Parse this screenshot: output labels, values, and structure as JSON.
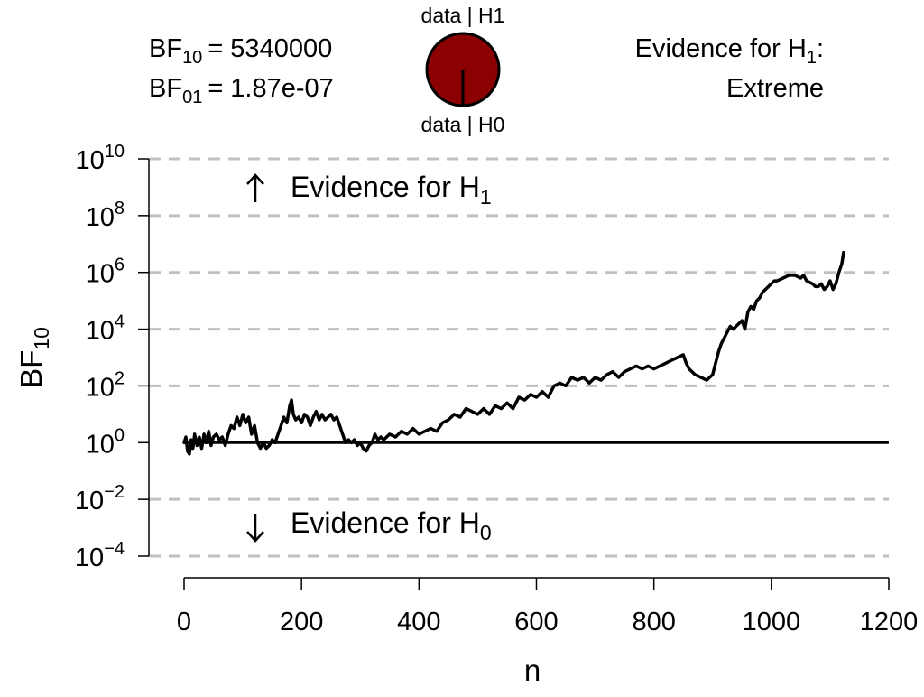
{
  "header": {
    "bf10_label": "BF",
    "bf10_sub": "10",
    "bf10_value": "= 5340000",
    "bf01_label": "BF",
    "bf01_sub": "01",
    "bf01_value": "= 1.87e-07",
    "pie_top_label": "data | H1",
    "pie_bottom_label": "data | H0",
    "evidence_line1_prefix": "Evidence for H",
    "evidence_line1_sub": "1",
    "evidence_line1_suffix": ":",
    "evidence_line2": "Extreme"
  },
  "annotations": {
    "h1_text": "Evidence for H",
    "h1_sub": "1",
    "h0_text": "Evidence for H",
    "h0_sub": "0",
    "up_arrow": "up-arrow-icon",
    "down_arrow": "down-arrow-icon"
  },
  "colors": {
    "pie_h1": "#8b0000",
    "pie_h0": "#ffffff",
    "line": "#000000",
    "gridline": "#c0c0c0"
  },
  "chart_data": {
    "type": "line",
    "title": "",
    "xlabel": "n",
    "ylabel_main": "BF",
    "ylabel_sub": "10",
    "y_scale": "log10",
    "xlim": [
      0,
      1200
    ],
    "ylim_exponent": [
      -4,
      10
    ],
    "x_ticks": [
      0,
      200,
      400,
      600,
      800,
      1000,
      1200
    ],
    "y_tick_base": "10",
    "y_tick_exponents": [
      -4,
      -2,
      0,
      2,
      4,
      6,
      8,
      10
    ],
    "dashed_grid_exponents": [
      -4,
      -2,
      2,
      4,
      6,
      8,
      10
    ],
    "reference_line_exponent": 0,
    "pie_h1_proportion": 1.0,
    "series": [
      {
        "log10_bf_points": [
          [
            0,
            0.0
          ],
          [
            3,
            0.2
          ],
          [
            6,
            -0.3
          ],
          [
            9,
            -0.4
          ],
          [
            12,
            0.1
          ],
          [
            15,
            -0.2
          ],
          [
            18,
            0.3
          ],
          [
            22,
            -0.1
          ],
          [
            26,
            0.2
          ],
          [
            30,
            -0.2
          ],
          [
            34,
            0.3
          ],
          [
            38,
            0.0
          ],
          [
            42,
            0.4
          ],
          [
            46,
            -0.1
          ],
          [
            50,
            0.2
          ],
          [
            55,
            0.3
          ],
          [
            60,
            0.1
          ],
          [
            65,
            0.2
          ],
          [
            70,
            -0.1
          ],
          [
            75,
            0.3
          ],
          [
            80,
            0.6
          ],
          [
            85,
            0.5
          ],
          [
            90,
            0.9
          ],
          [
            95,
            0.6
          ],
          [
            100,
            1.0
          ],
          [
            105,
            0.7
          ],
          [
            110,
            0.9
          ],
          [
            115,
            0.3
          ],
          [
            120,
            0.6
          ],
          [
            125,
            0.0
          ],
          [
            130,
            -0.2
          ],
          [
            135,
            0.0
          ],
          [
            140,
            -0.2
          ],
          [
            145,
            -0.1
          ],
          [
            150,
            0.1
          ],
          [
            155,
            0.0
          ],
          [
            160,
            0.3
          ],
          [
            165,
            0.6
          ],
          [
            170,
            0.9
          ],
          [
            175,
            0.7
          ],
          [
            180,
            1.3
          ],
          [
            183,
            1.5
          ],
          [
            186,
            1.0
          ],
          [
            190,
            0.8
          ],
          [
            195,
            0.9
          ],
          [
            200,
            0.7
          ],
          [
            205,
            1.0
          ],
          [
            210,
            0.9
          ],
          [
            215,
            0.6
          ],
          [
            220,
            0.9
          ],
          [
            225,
            1.1
          ],
          [
            230,
            0.8
          ],
          [
            235,
            1.0
          ],
          [
            240,
            0.8
          ],
          [
            245,
            0.9
          ],
          [
            250,
            1.0
          ],
          [
            255,
            0.8
          ],
          [
            260,
            0.9
          ],
          [
            265,
            0.6
          ],
          [
            270,
            0.3
          ],
          [
            275,
            0.0
          ],
          [
            280,
            0.1
          ],
          [
            285,
            0.0
          ],
          [
            290,
            0.1
          ],
          [
            295,
            -0.1
          ],
          [
            300,
            0.0
          ],
          [
            305,
            -0.2
          ],
          [
            310,
            -0.3
          ],
          [
            315,
            -0.1
          ],
          [
            320,
            0.0
          ],
          [
            325,
            0.3
          ],
          [
            330,
            0.1
          ],
          [
            335,
            0.2
          ],
          [
            340,
            0.1
          ],
          [
            345,
            0.2
          ],
          [
            350,
            0.3
          ],
          [
            360,
            0.2
          ],
          [
            370,
            0.4
          ],
          [
            380,
            0.3
          ],
          [
            390,
            0.5
          ],
          [
            400,
            0.3
          ],
          [
            410,
            0.4
          ],
          [
            420,
            0.5
          ],
          [
            430,
            0.4
          ],
          [
            440,
            0.7
          ],
          [
            450,
            0.8
          ],
          [
            460,
            1.0
          ],
          [
            470,
            0.9
          ],
          [
            480,
            1.2
          ],
          [
            490,
            1.1
          ],
          [
            500,
            1.0
          ],
          [
            510,
            1.2
          ],
          [
            520,
            1.0
          ],
          [
            530,
            1.3
          ],
          [
            540,
            1.2
          ],
          [
            550,
            1.4
          ],
          [
            560,
            1.2
          ],
          [
            570,
            1.6
          ],
          [
            580,
            1.5
          ],
          [
            590,
            1.7
          ],
          [
            600,
            1.6
          ],
          [
            610,
            1.8
          ],
          [
            620,
            1.6
          ],
          [
            630,
            2.0
          ],
          [
            640,
            2.1
          ],
          [
            650,
            2.0
          ],
          [
            660,
            2.3
          ],
          [
            670,
            2.2
          ],
          [
            680,
            2.3
          ],
          [
            690,
            2.1
          ],
          [
            700,
            2.3
          ],
          [
            710,
            2.2
          ],
          [
            720,
            2.4
          ],
          [
            730,
            2.5
          ],
          [
            740,
            2.3
          ],
          [
            750,
            2.5
          ],
          [
            760,
            2.6
          ],
          [
            770,
            2.7
          ],
          [
            780,
            2.6
          ],
          [
            790,
            2.7
          ],
          [
            800,
            2.6
          ],
          [
            810,
            2.7
          ],
          [
            820,
            2.8
          ],
          [
            830,
            2.9
          ],
          [
            840,
            3.0
          ],
          [
            850,
            3.1
          ],
          [
            855,
            2.8
          ],
          [
            860,
            2.6
          ],
          [
            870,
            2.4
          ],
          [
            880,
            2.3
          ],
          [
            890,
            2.2
          ],
          [
            900,
            2.4
          ],
          [
            905,
            2.8
          ],
          [
            910,
            3.2
          ],
          [
            915,
            3.5
          ],
          [
            920,
            3.7
          ],
          [
            925,
            3.9
          ],
          [
            930,
            4.1
          ],
          [
            935,
            4.0
          ],
          [
            940,
            4.1
          ],
          [
            945,
            4.2
          ],
          [
            950,
            4.3
          ],
          [
            955,
            4.0
          ],
          [
            960,
            4.6
          ],
          [
            965,
            4.8
          ],
          [
            970,
            4.7
          ],
          [
            975,
            5.0
          ],
          [
            980,
            5.1
          ],
          [
            985,
            5.3
          ],
          [
            990,
            5.4
          ],
          [
            995,
            5.5
          ],
          [
            1000,
            5.6
          ],
          [
            1005,
            5.7
          ],
          [
            1010,
            5.7
          ],
          [
            1020,
            5.8
          ],
          [
            1030,
            5.9
          ],
          [
            1040,
            5.9
          ],
          [
            1050,
            5.8
          ],
          [
            1055,
            5.9
          ],
          [
            1060,
            5.7
          ],
          [
            1070,
            5.6
          ],
          [
            1075,
            5.5
          ],
          [
            1080,
            5.5
          ],
          [
            1085,
            5.6
          ],
          [
            1090,
            5.4
          ],
          [
            1095,
            5.5
          ],
          [
            1100,
            5.7
          ],
          [
            1105,
            5.4
          ],
          [
            1110,
            5.6
          ],
          [
            1115,
            6.0
          ],
          [
            1120,
            6.3
          ],
          [
            1123,
            6.7
          ]
        ]
      }
    ]
  }
}
